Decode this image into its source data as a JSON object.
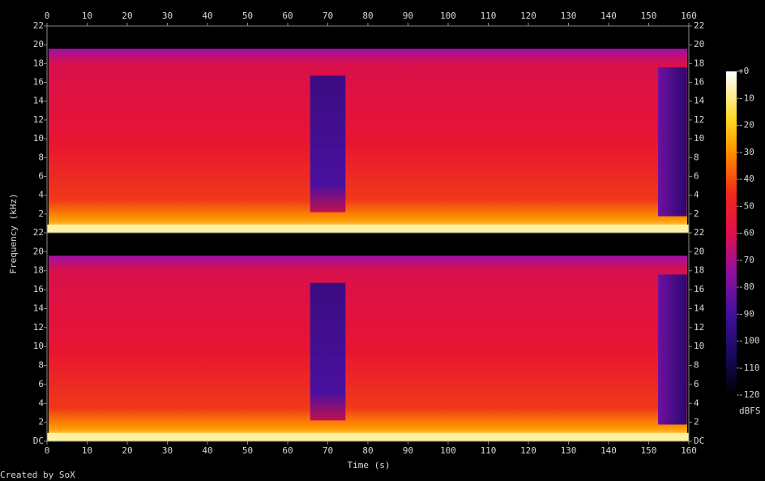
{
  "chart_data": {
    "type": "spectrogram",
    "x_label": "Time (s)",
    "y_label": "Frequency (kHz)",
    "xlim": [
      0,
      160
    ],
    "xticks": [
      0,
      10,
      20,
      30,
      40,
      50,
      60,
      70,
      80,
      90,
      100,
      110,
      120,
      130,
      140,
      150,
      160
    ],
    "channels": [
      {
        "ylim": [
          0,
          22
        ],
        "yticks": [
          2,
          4,
          6,
          8,
          10,
          12,
          14,
          16,
          18,
          20,
          22
        ]
      },
      {
        "ylim": [
          0,
          22
        ],
        "yticks": [
          {
            "value": 0,
            "label": "DC"
          },
          2,
          4,
          6,
          8,
          10,
          12,
          14,
          16,
          18,
          20,
          22
        ]
      }
    ],
    "colorbar": {
      "label": "dBFS",
      "lim": [
        -120,
        0
      ],
      "ticks": [
        {
          "value": 0,
          "label": "+0"
        },
        -10,
        -20,
        -30,
        -40,
        -50,
        -60,
        -70,
        -80,
        -90,
        -100,
        -110,
        -120
      ]
    },
    "credit": "Created by SoX"
  }
}
